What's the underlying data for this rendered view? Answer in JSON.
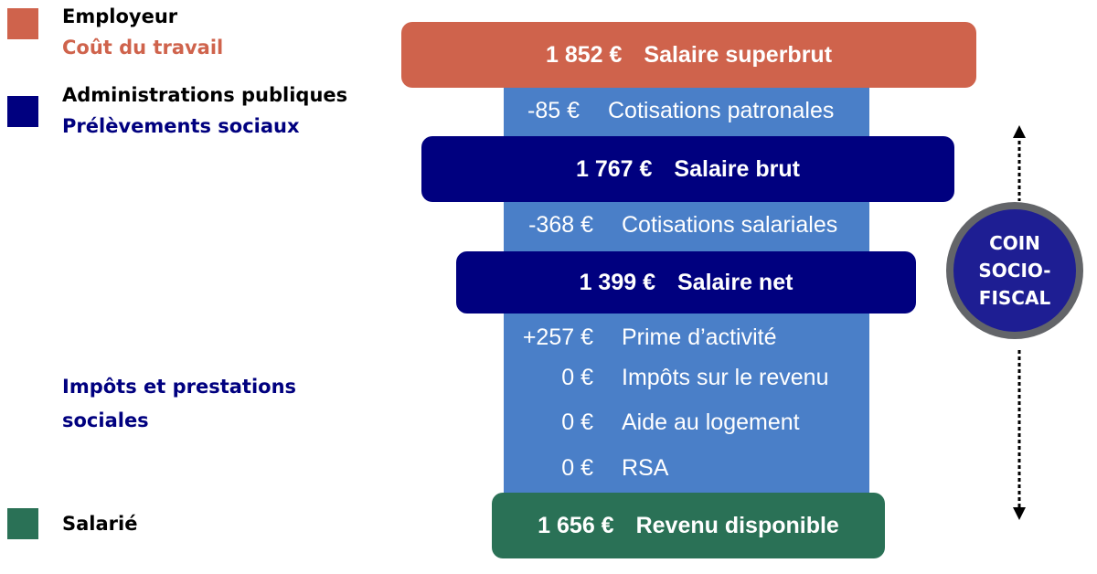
{
  "legend": {
    "employer": {
      "title": "Employeur",
      "subtitle": "Coût du travail",
      "color": "#cf634c"
    },
    "public_admin": {
      "title": "Administrations publiques",
      "subtitle": "Prélèvements sociaux",
      "color": "#00007f"
    },
    "taxes": {
      "title": "Impôts et prestations sociales"
    },
    "employee": {
      "title": "Salarié",
      "color": "#2a7156"
    }
  },
  "flow": {
    "superbrut": {
      "amount": "1 852 €",
      "label": "Salaire superbrut",
      "color": "#cf634c"
    },
    "cotisations_patronales": {
      "amount": "-85 €",
      "label": "Cotisations patronales"
    },
    "brut": {
      "amount": "1 767 €",
      "label": "Salaire brut",
      "color": "#00007f"
    },
    "cotisations_salariales": {
      "amount": "-368 €",
      "label": "Cotisations salariales"
    },
    "net": {
      "amount": "1 399 €",
      "label": "Salaire net",
      "color": "#00007f"
    },
    "prime_activite": {
      "amount": "+257 €",
      "label": "Prime d’activité"
    },
    "impots_revenu": {
      "amount": "0 €",
      "label": "Impôts sur le revenu"
    },
    "aide_logement": {
      "amount": "0 €",
      "label": "Aide au logement"
    },
    "rsa": {
      "amount": "0 €",
      "label": "RSA"
    },
    "revenu_disponible": {
      "amount": "1 656 €",
      "label": "Revenu disponible",
      "color": "#2a7156"
    },
    "band_color": "#4a7fc8"
  },
  "coin": {
    "line1": "COIN",
    "line2": "SOCIO-",
    "line3": "FISCAL"
  }
}
